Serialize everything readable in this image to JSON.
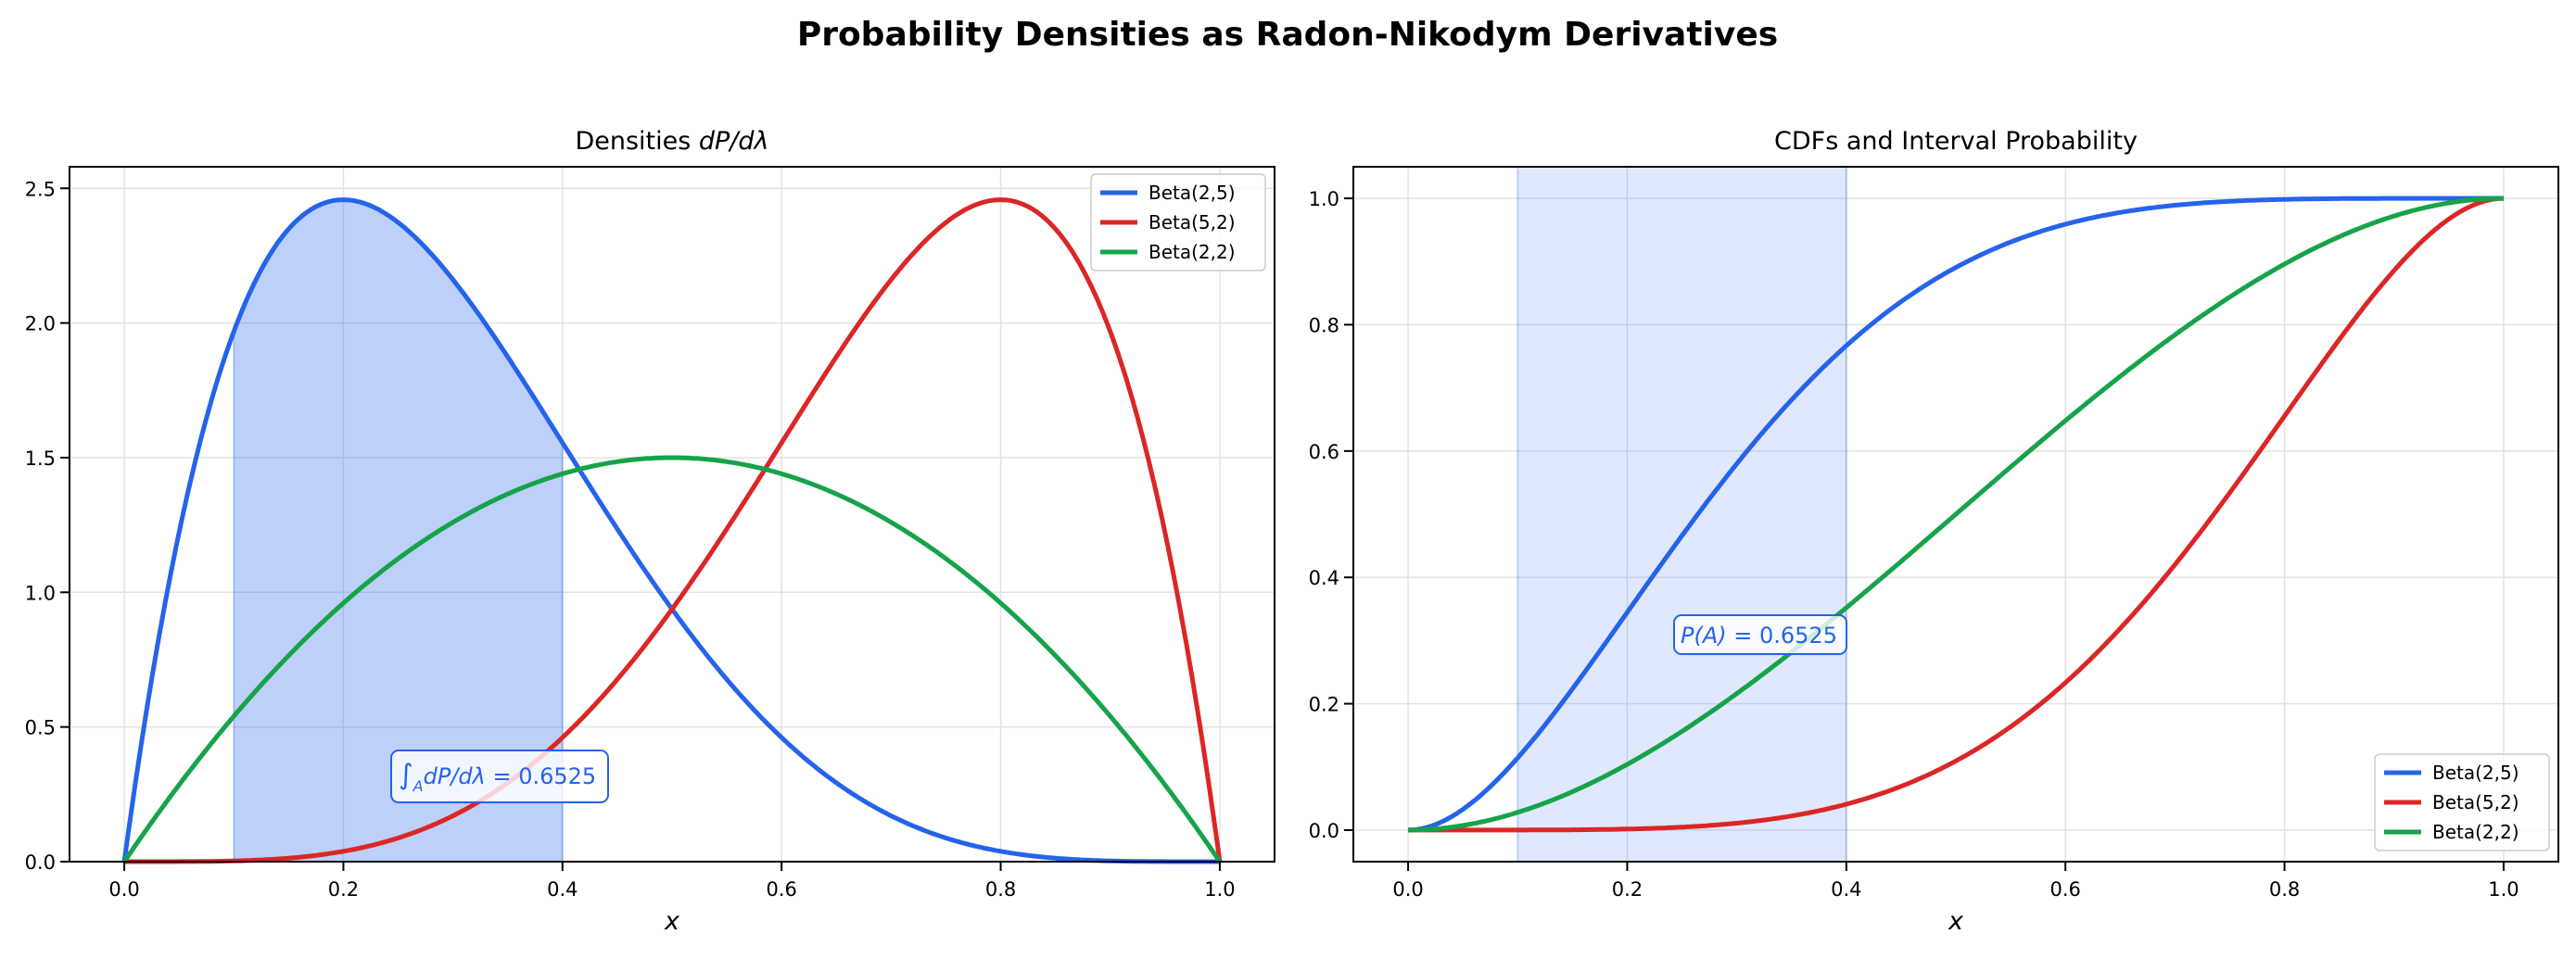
{
  "suptitle": "Probability Densities as Radon-Nikodym Derivatives",
  "colors": {
    "beta25": "#2563eb",
    "beta52": "#dc2626",
    "beta22": "#16a34a",
    "grid": "#e3e3e3"
  },
  "chart_data": [
    {
      "type": "line",
      "title_text": "Densities ",
      "title_math": "dP/dλ",
      "xlabel": "x",
      "ylabel": "",
      "xlim": [
        -0.05,
        1.05
      ],
      "ylim": [
        0,
        2.58
      ],
      "xticks": [
        "0.0",
        "0.2",
        "0.4",
        "0.6",
        "0.8",
        "1.0"
      ],
      "yticks": [
        "0.0",
        "0.5",
        "1.0",
        "1.5",
        "2.0",
        "2.5"
      ],
      "grid": true,
      "legend": "top-right",
      "x": [
        0,
        0.1,
        0.2,
        0.3,
        0.4,
        0.5,
        0.6,
        0.7,
        0.8,
        0.9,
        1.0
      ],
      "series": [
        {
          "name": "Beta(2,5)",
          "alpha": 2,
          "beta": 5,
          "color": "#2563eb",
          "y": [
            0,
            1.968,
            2.458,
            2.161,
            1.555,
            0.938,
            0.461,
            0.17,
            0.038,
            0.003,
            0
          ]
        },
        {
          "name": "Beta(5,2)",
          "alpha": 5,
          "beta": 2,
          "color": "#dc2626",
          "y": [
            0,
            0.003,
            0.038,
            0.17,
            0.461,
            0.938,
            1.555,
            2.161,
            2.458,
            1.968,
            0
          ]
        },
        {
          "name": "Beta(2,2)",
          "alpha": 2,
          "beta": 2,
          "color": "#16a34a",
          "y": [
            0,
            0.54,
            0.96,
            1.26,
            1.44,
            1.5,
            1.44,
            1.26,
            0.96,
            0.54,
            0
          ]
        }
      ],
      "shaded_interval": [
        0.1,
        0.4
      ],
      "shaded_under": "Beta(2,5)",
      "annotation": {
        "integral": "∫",
        "sub": "A",
        "expr": "dP/dλ",
        "value": " = 0.6525",
        "x": 0.25,
        "y": 0.3
      }
    },
    {
      "type": "line",
      "title": "CDFs and Interval Probability",
      "xlabel": "x",
      "ylabel": "",
      "xlim": [
        -0.05,
        1.05
      ],
      "ylim": [
        -0.05,
        1.05
      ],
      "xticks": [
        "0.0",
        "0.2",
        "0.4",
        "0.6",
        "0.8",
        "1.0"
      ],
      "yticks": [
        "0.0",
        "0.2",
        "0.4",
        "0.6",
        "0.8",
        "1.0"
      ],
      "grid": true,
      "legend": "bottom-right",
      "x": [
        0,
        0.1,
        0.2,
        0.3,
        0.4,
        0.5,
        0.6,
        0.7,
        0.8,
        0.9,
        1.0
      ],
      "series": [
        {
          "name": "Beta(2,5)",
          "alpha": 2,
          "beta": 5,
          "color": "#2563eb",
          "y": [
            0,
            0.114,
            0.345,
            0.58,
            0.767,
            0.891,
            0.959,
            0.989,
            0.998,
            1.0,
            1.0
          ]
        },
        {
          "name": "Beta(5,2)",
          "alpha": 5,
          "beta": 2,
          "color": "#dc2626",
          "y": [
            0,
            0.0,
            0.002,
            0.011,
            0.041,
            0.109,
            0.233,
            0.42,
            0.655,
            0.886,
            1.0
          ]
        },
        {
          "name": "Beta(2,2)",
          "alpha": 2,
          "beta": 2,
          "color": "#16a34a",
          "y": [
            0,
            0.028,
            0.104,
            0.216,
            0.352,
            0.5,
            0.648,
            0.784,
            0.896,
            0.972,
            1.0
          ]
        }
      ],
      "shaded_interval": [
        0.1,
        0.4
      ],
      "annotation": {
        "expr": "P(A)",
        "value": " = 0.6525",
        "x": 0.25,
        "y": 0.3
      }
    }
  ]
}
